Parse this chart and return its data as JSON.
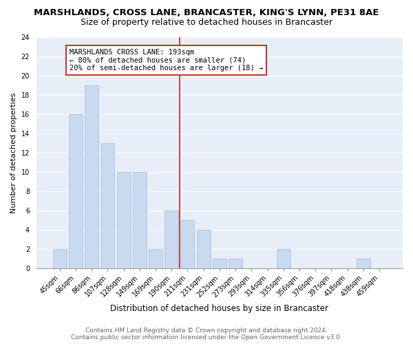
{
  "title1": "MARSHLANDS, CROSS LANE, BRANCASTER, KING'S LYNN, PE31 8AE",
  "title2": "Size of property relative to detached houses in Brancaster",
  "xlabel": "Distribution of detached houses by size in Brancaster",
  "ylabel": "Number of detached properties",
  "categories": [
    "45sqm",
    "66sqm",
    "86sqm",
    "107sqm",
    "128sqm",
    "149sqm",
    "169sqm",
    "190sqm",
    "211sqm",
    "231sqm",
    "252sqm",
    "273sqm",
    "293sqm",
    "314sqm",
    "335sqm",
    "356sqm",
    "376sqm",
    "397sqm",
    "418sqm",
    "438sqm",
    "459sqm"
  ],
  "values": [
    2,
    16,
    19,
    13,
    10,
    10,
    2,
    6,
    5,
    4,
    1,
    1,
    0,
    0,
    2,
    0,
    0,
    0,
    0,
    1,
    0
  ],
  "bar_color": "#c9d9f0",
  "bar_edge_color": "#a8c4e0",
  "ylim": [
    0,
    24
  ],
  "yticks": [
    0,
    2,
    4,
    6,
    8,
    10,
    12,
    14,
    16,
    18,
    20,
    22,
    24
  ],
  "vline_x_index": 7.5,
  "vline_color": "#c0392b",
  "annotation_title": "MARSHLANDS CROSS LANE: 193sqm",
  "annotation_line1": "← 80% of detached houses are smaller (74)",
  "annotation_line2": "20% of semi-detached houses are larger (18) →",
  "annotation_box_facecolor": "#ffffff",
  "annotation_box_edgecolor": "#c0392b",
  "footer1": "Contains HM Land Registry data © Crown copyright and database right 2024.",
  "footer2": "Contains public sector information licensed under the Open Government Licence v3.0.",
  "plot_bg_color": "#e8eef8",
  "fig_bg_color": "#ffffff",
  "grid_color": "#ffffff",
  "title1_fontsize": 9.5,
  "title2_fontsize": 9,
  "xlabel_fontsize": 8.5,
  "ylabel_fontsize": 8,
  "tick_fontsize": 7,
  "ann_fontsize": 7.5,
  "footer_fontsize": 6.5
}
